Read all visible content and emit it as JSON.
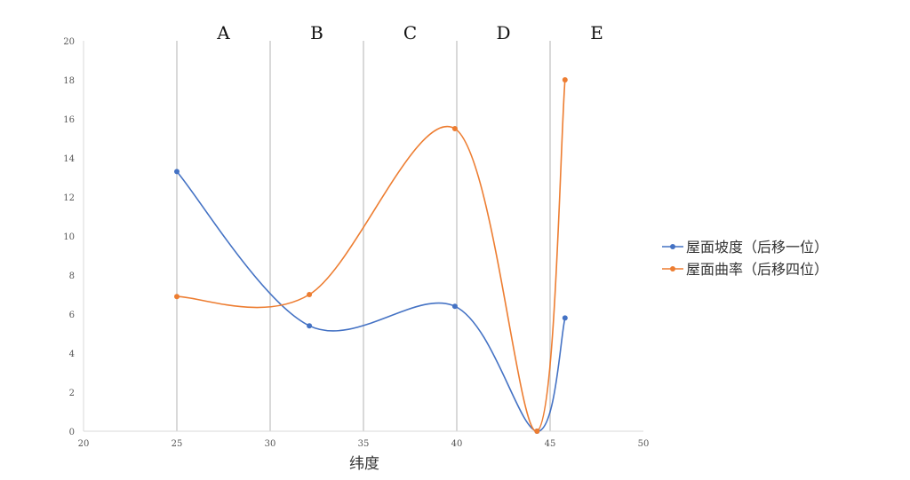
{
  "chart_data": {
    "type": "line",
    "xlabel": "纬度",
    "ylabel": "",
    "xlim": [
      20,
      50
    ],
    "ylim": [
      0,
      20
    ],
    "x_ticks": [
      20,
      25,
      30,
      35,
      40,
      45,
      50
    ],
    "y_ticks": [
      0,
      2,
      4,
      6,
      8,
      10,
      12,
      14,
      16,
      18,
      20
    ],
    "smooth": true,
    "vertical_gridlines_at": [
      25,
      30,
      35,
      40,
      45
    ],
    "regions": [
      {
        "label": "A",
        "x": 27.5
      },
      {
        "label": "B",
        "x": 32.5
      },
      {
        "label": "C",
        "x": 37.5
      },
      {
        "label": "D",
        "x": 42.5
      },
      {
        "label": "E",
        "x": 47.5
      }
    ],
    "legend_position": "right",
    "series": [
      {
        "name": "屋面坡度（后移一位）",
        "color": "#4472c4",
        "points": [
          {
            "x": 25,
            "y": 13.3
          },
          {
            "x": 32.1,
            "y": 5.4
          },
          {
            "x": 39.9,
            "y": 6.4
          },
          {
            "x": 44.3,
            "y": 0
          },
          {
            "x": 45.8,
            "y": 5.8
          }
        ]
      },
      {
        "name": "屋面曲率（后移四位）",
        "color": "#ed7d31",
        "points": [
          {
            "x": 25,
            "y": 6.9
          },
          {
            "x": 32.1,
            "y": 7.0
          },
          {
            "x": 39.9,
            "y": 15.5
          },
          {
            "x": 44.3,
            "y": 0
          },
          {
            "x": 45.8,
            "y": 18.0
          }
        ]
      }
    ]
  }
}
